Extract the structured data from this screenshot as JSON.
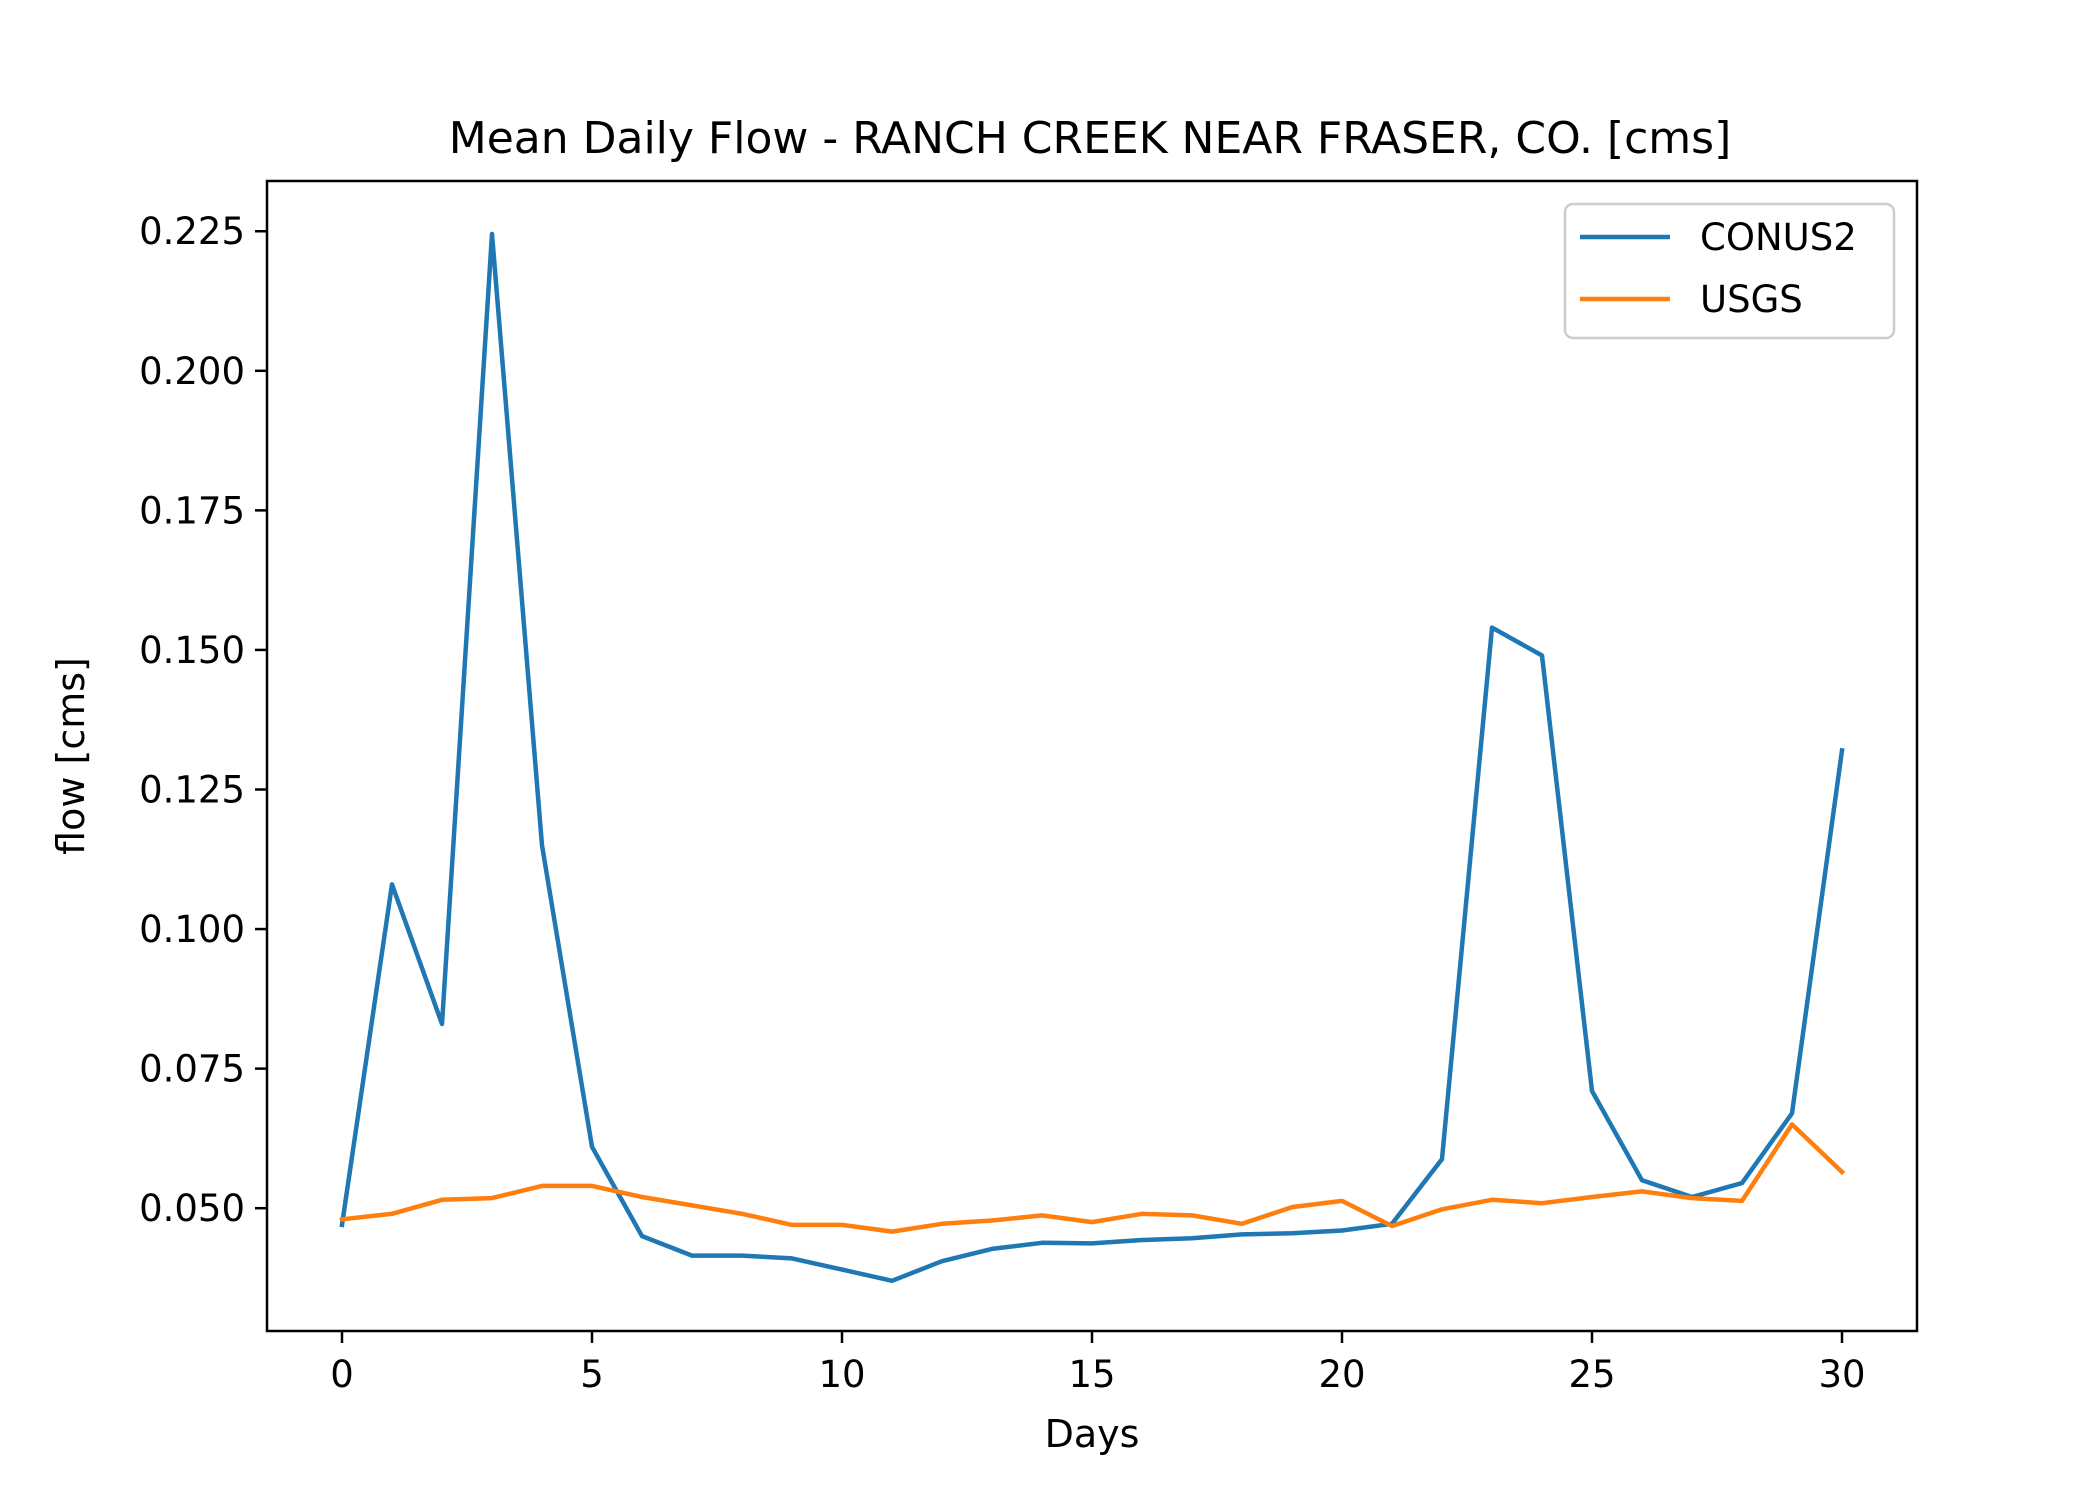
{
  "chart_data": {
    "type": "line",
    "title": "Mean Daily Flow - RANCH CREEK NEAR FRASER, CO. [cms]",
    "xlabel": "Days",
    "ylabel": "flow [cms]",
    "xlim": [
      -1.5,
      31.5
    ],
    "ylim": [
      0.028,
      0.234
    ],
    "xticks": [
      0,
      5,
      10,
      15,
      20,
      25,
      30
    ],
    "xtick_labels": [
      "0",
      "5",
      "10",
      "15",
      "20",
      "25",
      "30"
    ],
    "yticks": [
      0.05,
      0.075,
      0.1,
      0.125,
      0.15,
      0.175,
      0.2,
      0.225
    ],
    "ytick_labels": [
      "0.050",
      "0.075",
      "0.100",
      "0.125",
      "0.150",
      "0.175",
      "0.200",
      "0.225"
    ],
    "grid": false,
    "legend_position": "top-right",
    "x": [
      0,
      1,
      2,
      3,
      4,
      5,
      6,
      7,
      8,
      9,
      10,
      11,
      12,
      13,
      14,
      15,
      16,
      17,
      18,
      19,
      20,
      21,
      22,
      23,
      24,
      25,
      26,
      27,
      28,
      29,
      30
    ],
    "series": [
      {
        "name": "CONUS2",
        "color": "#1f77b4",
        "values": [
          0.047,
          0.108,
          0.083,
          0.2245,
          0.115,
          0.061,
          0.045,
          0.0415,
          0.0415,
          0.041,
          0.039,
          0.037,
          0.0405,
          0.0427,
          0.0438,
          0.0437,
          0.0443,
          0.0446,
          0.0453,
          0.0455,
          0.046,
          0.0472,
          0.0588,
          0.154,
          0.149,
          0.071,
          0.055,
          0.052,
          0.0545,
          0.067,
          0.132
        ]
      },
      {
        "name": "USGS",
        "color": "#ff7f0e",
        "values": [
          0.048,
          0.049,
          0.0515,
          0.0518,
          0.054,
          0.054,
          0.052,
          0.0505,
          0.049,
          0.047,
          0.047,
          0.0458,
          0.0472,
          0.0478,
          0.0487,
          0.0475,
          0.049,
          0.0487,
          0.0472,
          0.0502,
          0.0513,
          0.0468,
          0.0498,
          0.0515,
          0.0509,
          0.052,
          0.053,
          0.0518,
          0.0513,
          0.065,
          0.0565
        ]
      }
    ]
  }
}
